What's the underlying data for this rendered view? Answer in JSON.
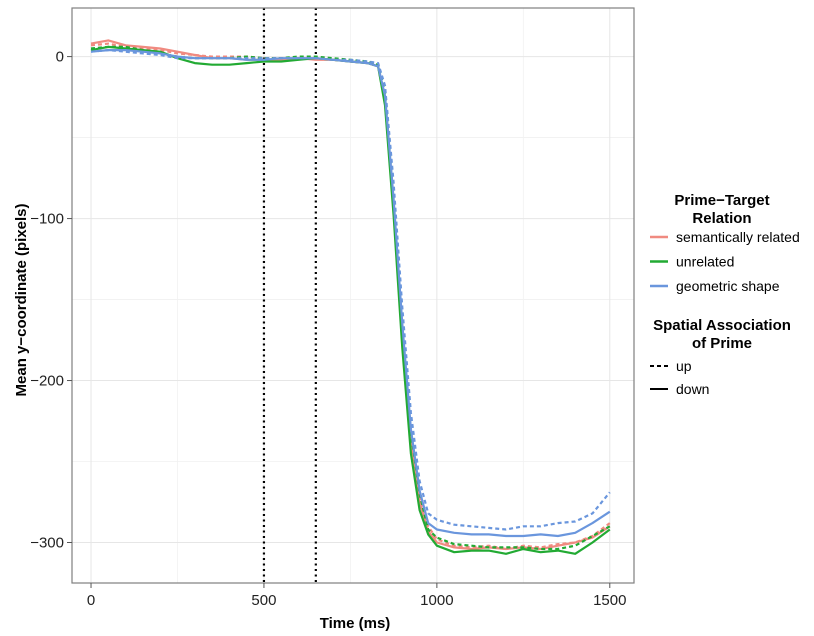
{
  "chart_data": {
    "type": "line",
    "xlabel": "Time (ms)",
    "ylabel": "Mean y−coordinate (pixels)",
    "xlim": [
      -55,
      1570
    ],
    "ylim": [
      -325,
      30
    ],
    "xticks": [
      0,
      500,
      1000,
      1500
    ],
    "yticks": [
      0,
      -100,
      -200,
      -300
    ],
    "xtick_labels": [
      "0",
      "500",
      "1000",
      "1500"
    ],
    "ytick_labels": [
      "0",
      "−100",
      "−200",
      "−300"
    ],
    "grid": true,
    "vlines": [
      500,
      650
    ],
    "legend": {
      "placement": "right",
      "color_title": "Prime−Target\nRelation",
      "color_entries": [
        {
          "label": "semantically related",
          "color": "#F08A80"
        },
        {
          "label": "unrelated",
          "color": "#22AA33"
        },
        {
          "label": "geometric shape",
          "color": "#6A96DD"
        }
      ],
      "linetype_title": "Spatial Association\nof Prime",
      "linetype_entries": [
        {
          "label": "up",
          "dash": "dotted"
        },
        {
          "label": "down",
          "dash": "solid"
        }
      ]
    },
    "x": [
      0,
      50,
      100,
      150,
      200,
      250,
      300,
      350,
      400,
      450,
      500,
      550,
      600,
      650,
      700,
      750,
      800,
      830,
      850,
      875,
      900,
      925,
      950,
      975,
      1000,
      1050,
      1100,
      1150,
      1200,
      1250,
      1300,
      1350,
      1400,
      1450,
      1500
    ],
    "series": [
      {
        "relation": "semantically related",
        "spatial": "up",
        "color": "#F08A80",
        "dash": "dotted",
        "values": [
          7,
          8,
          6,
          5,
          4,
          2,
          1,
          0,
          0,
          0,
          -1,
          -1,
          -1,
          -1,
          -2,
          -3,
          -4,
          -6,
          -25,
          -90,
          -170,
          -235,
          -270,
          -290,
          -298,
          -302,
          -303,
          -302,
          -304,
          -302,
          -303,
          -301,
          -300,
          -296,
          -288
        ]
      },
      {
        "relation": "semantically related",
        "spatial": "down",
        "color": "#F08A80",
        "dash": "solid",
        "values": [
          8,
          10,
          7,
          6,
          5,
          3,
          1,
          -1,
          -1,
          -2,
          -2,
          -2,
          -1,
          -2,
          -2,
          -3,
          -4,
          -6,
          -28,
          -95,
          -175,
          -240,
          -275,
          -293,
          -300,
          -303,
          -304,
          -303,
          -304,
          -303,
          -304,
          -302,
          -300,
          -297,
          -290
        ]
      },
      {
        "relation": "unrelated",
        "spatial": "up",
        "color": "#22AA33",
        "dash": "dotted",
        "values": [
          5,
          6,
          6,
          4,
          2,
          0,
          -1,
          -1,
          -1,
          0,
          -1,
          -1,
          0,
          0,
          -1,
          -2,
          -3,
          -5,
          -22,
          -88,
          -168,
          -232,
          -270,
          -292,
          -297,
          -301,
          -302,
          -303,
          -303,
          -303,
          -304,
          -304,
          -302,
          -296,
          -290
        ]
      },
      {
        "relation": "unrelated",
        "spatial": "down",
        "color": "#22AA33",
        "dash": "solid",
        "values": [
          4,
          6,
          5,
          4,
          3,
          -1,
          -4,
          -5,
          -5,
          -4,
          -3,
          -3,
          -2,
          -1,
          -2,
          -3,
          -4,
          -6,
          -30,
          -98,
          -180,
          -245,
          -280,
          -295,
          -302,
          -306,
          -305,
          -305,
          -307,
          -304,
          -306,
          -305,
          -307,
          -300,
          -292
        ]
      },
      {
        "relation": "geometric shape",
        "spatial": "up",
        "color": "#6A96DD",
        "dash": "dotted",
        "values": [
          3,
          4,
          3,
          2,
          1,
          -1,
          -1,
          -1,
          -1,
          -1,
          -1,
          -1,
          -1,
          -1,
          -2,
          -2,
          -3,
          -4,
          -18,
          -78,
          -155,
          -220,
          -262,
          -282,
          -286,
          -289,
          -290,
          -291,
          -292,
          -290,
          -290,
          -288,
          -287,
          -282,
          -269
        ]
      },
      {
        "relation": "geometric shape",
        "spatial": "down",
        "color": "#6A96DD",
        "dash": "solid",
        "values": [
          3,
          4,
          4,
          3,
          2,
          0,
          -1,
          -1,
          -1,
          -2,
          -2,
          -1,
          -1,
          -1,
          -2,
          -3,
          -4,
          -6,
          -24,
          -88,
          -165,
          -230,
          -268,
          -288,
          -292,
          -294,
          -295,
          -295,
          -296,
          -296,
          -295,
          -296,
          -294,
          -288,
          -281
        ]
      }
    ]
  }
}
